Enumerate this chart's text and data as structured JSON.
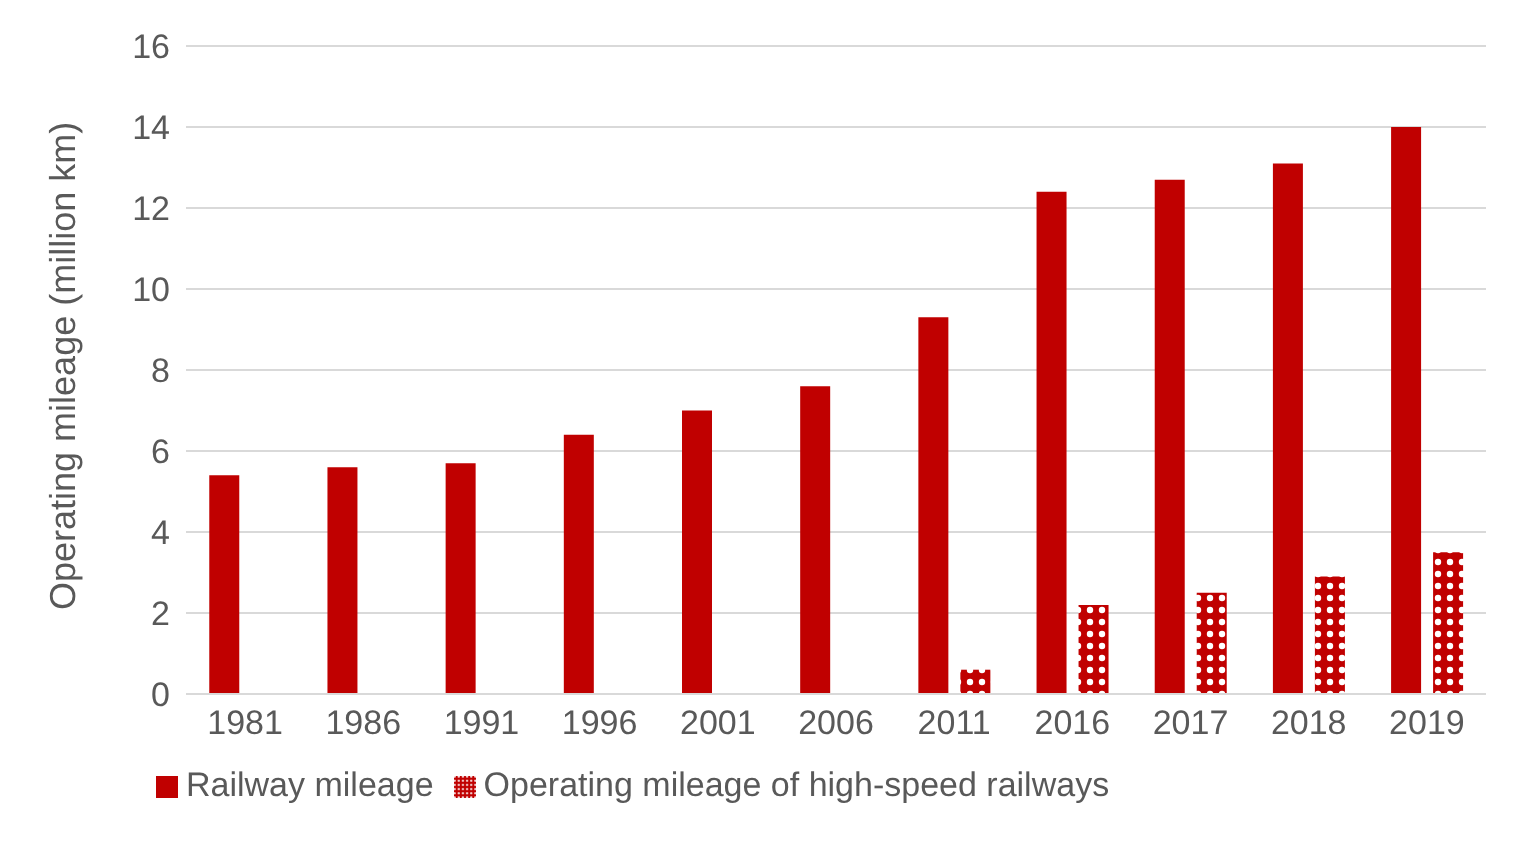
{
  "chart_data": {
    "type": "bar",
    "ylabel": "Operating mileage (million km)",
    "categories": [
      "1981",
      "1986",
      "1991",
      "1996",
      "2001",
      "2006",
      "2011",
      "2016",
      "2017",
      "2018",
      "2019"
    ],
    "series": [
      {
        "name": "Railway mileage",
        "color": "#c00000",
        "values": [
          5.4,
          5.6,
          5.7,
          6.4,
          7.0,
          7.6,
          9.3,
          12.4,
          12.7,
          13.1,
          14.0
        ]
      },
      {
        "name": "Operating mileage of high-speed railways",
        "color": "#c00000",
        "values": [
          null,
          null,
          null,
          null,
          null,
          null,
          0.6,
          2.2,
          2.5,
          2.9,
          3.5
        ]
      }
    ],
    "ylim": [
      0,
      16
    ],
    "yticks": [
      0,
      2,
      4,
      6,
      8,
      10,
      12,
      14,
      16
    ],
    "grid": "y",
    "legend": "bottom left"
  }
}
